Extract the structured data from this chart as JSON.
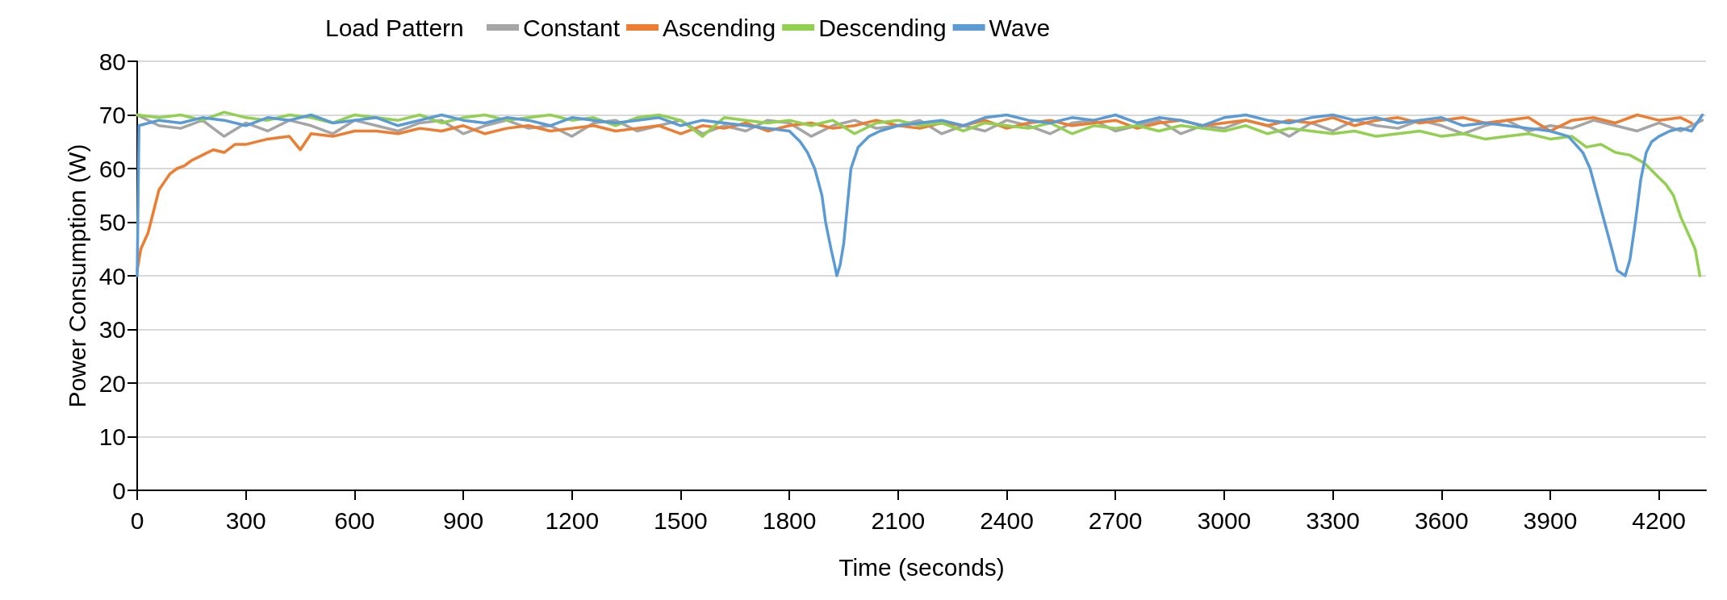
{
  "chart_data": {
    "type": "line",
    "xlabel": "Time (seconds)",
    "ylabel": "Power Consumption (W)",
    "legend_title": "Load Pattern",
    "xlim": [
      0,
      4330
    ],
    "xticks": [
      0,
      300,
      600,
      900,
      1200,
      1500,
      1800,
      2100,
      2400,
      2700,
      3000,
      3300,
      3600,
      3900,
      4200
    ],
    "ylim": [
      0,
      80
    ],
    "yticks": [
      0,
      10,
      20,
      30,
      40,
      50,
      60,
      70,
      80
    ],
    "grid": "y",
    "legend": "top",
    "marker": "none",
    "line_style": "solid",
    "series": [
      {
        "name": "Constant",
        "color": "#a5a5a5",
        "x": [
          0,
          60,
          120,
          180,
          240,
          300,
          360,
          420,
          480,
          540,
          600,
          660,
          720,
          780,
          840,
          900,
          960,
          1020,
          1080,
          1140,
          1200,
          1260,
          1320,
          1380,
          1440,
          1500,
          1560,
          1620,
          1680,
          1740,
          1800,
          1860,
          1920,
          1980,
          2040,
          2100,
          2160,
          2220,
          2280,
          2340,
          2400,
          2460,
          2520,
          2580,
          2640,
          2700,
          2760,
          2820,
          2880,
          2940,
          3000,
          3060,
          3120,
          3180,
          3240,
          3300,
          3360,
          3420,
          3480,
          3540,
          3600,
          3660,
          3720,
          3780,
          3840,
          3900,
          3960,
          4020,
          4080,
          4140,
          4200,
          4260,
          4320
        ],
        "values": [
          70,
          68,
          67.5,
          69,
          66,
          68.5,
          67,
          69,
          68,
          66.5,
          69,
          68,
          67,
          68.5,
          69,
          66.5,
          68,
          69,
          67.5,
          68,
          66,
          68.5,
          69,
          67,
          68,
          69,
          66.5,
          68,
          67,
          69,
          68.5,
          66,
          68,
          69,
          67.5,
          68,
          69,
          66.5,
          68,
          67,
          69,
          68,
          66.5,
          68.5,
          69,
          67,
          68,
          69,
          66.5,
          68,
          67.5,
          69,
          68,
          66,
          68.5,
          67,
          69,
          68,
          67.5,
          69,
          68,
          66.5,
          68,
          69,
          67,
          68,
          67.5,
          69,
          68,
          67,
          68.5,
          67,
          69
        ]
      },
      {
        "name": "Ascending",
        "color": "#ed7d31",
        "x": [
          0,
          10,
          20,
          30,
          45,
          60,
          75,
          90,
          110,
          130,
          150,
          180,
          210,
          240,
          270,
          300,
          360,
          420,
          450,
          480,
          540,
          600,
          660,
          720,
          780,
          840,
          900,
          960,
          1020,
          1080,
          1140,
          1200,
          1260,
          1320,
          1380,
          1440,
          1500,
          1560,
          1620,
          1680,
          1740,
          1800,
          1860,
          1920,
          1980,
          2040,
          2100,
          2160,
          2220,
          2280,
          2340,
          2400,
          2460,
          2520,
          2580,
          2640,
          2700,
          2760,
          2820,
          2880,
          2940,
          3000,
          3060,
          3120,
          3180,
          3240,
          3300,
          3360,
          3420,
          3480,
          3540,
          3600,
          3660,
          3720,
          3780,
          3840,
          3900,
          3960,
          4020,
          4080,
          4140,
          4200,
          4260,
          4290
        ],
        "values": [
          41,
          45,
          46.5,
          48,
          52,
          56,
          57.5,
          59,
          60,
          60.5,
          61.5,
          62.5,
          63.5,
          63,
          64.5,
          64.5,
          65.5,
          66,
          63.5,
          66.5,
          66,
          67,
          67,
          66.5,
          67.5,
          67,
          68,
          66.5,
          67.5,
          68,
          67,
          67.5,
          68,
          67,
          67.5,
          68,
          66.5,
          68,
          67.5,
          68.5,
          67,
          68,
          68.5,
          67.5,
          68,
          69,
          68,
          67.5,
          68.5,
          68,
          69,
          67.5,
          68.5,
          69,
          68,
          68.5,
          69,
          67.5,
          68.5,
          69,
          68,
          68.5,
          69,
          68,
          69,
          68.5,
          69.5,
          68,
          69,
          69.5,
          68.5,
          69,
          69.5,
          68.5,
          69,
          69.5,
          67,
          69,
          69.5,
          68.5,
          70,
          69,
          69.5,
          68.5
        ]
      },
      {
        "name": "Descending",
        "color": "#92d050",
        "x": [
          0,
          60,
          120,
          180,
          240,
          300,
          360,
          420,
          480,
          540,
          600,
          660,
          720,
          780,
          840,
          900,
          960,
          1020,
          1080,
          1140,
          1200,
          1260,
          1320,
          1380,
          1440,
          1500,
          1560,
          1620,
          1680,
          1740,
          1800,
          1860,
          1920,
          1980,
          2040,
          2100,
          2160,
          2220,
          2280,
          2340,
          2400,
          2460,
          2520,
          2580,
          2640,
          2700,
          2760,
          2820,
          2880,
          2940,
          3000,
          3060,
          3120,
          3180,
          3240,
          3300,
          3360,
          3420,
          3480,
          3540,
          3600,
          3660,
          3720,
          3780,
          3840,
          3900,
          3960,
          4000,
          4040,
          4080,
          4120,
          4160,
          4190,
          4220,
          4240,
          4260,
          4280,
          4300,
          4313
        ],
        "values": [
          70,
          69.5,
          70,
          69,
          70.5,
          69.5,
          69,
          70,
          69.5,
          68.5,
          70,
          69.5,
          69,
          70,
          68.5,
          69.5,
          70,
          69,
          69.5,
          70,
          69,
          69.5,
          68,
          69.5,
          70,
          69,
          66,
          69.5,
          69,
          68.5,
          69,
          68,
          69,
          66.5,
          68.5,
          69,
          68,
          68.5,
          67,
          68.5,
          68,
          67.5,
          68.5,
          66.5,
          68,
          67.5,
          68,
          67,
          68,
          67.5,
          67,
          68,
          66.5,
          67.5,
          67,
          66.5,
          67,
          66,
          66.5,
          67,
          66,
          66.5,
          65.5,
          66,
          66.5,
          65.5,
          66,
          64,
          64.5,
          63,
          62.5,
          61,
          59,
          57,
          55,
          51,
          48,
          45,
          40
        ]
      },
      {
        "name": "Wave",
        "color": "#5b9bd5",
        "x": [
          0,
          5,
          60,
          120,
          180,
          240,
          300,
          360,
          420,
          480,
          540,
          600,
          660,
          720,
          780,
          840,
          900,
          960,
          1020,
          1080,
          1140,
          1200,
          1260,
          1320,
          1380,
          1440,
          1500,
          1560,
          1620,
          1680,
          1740,
          1800,
          1830,
          1850,
          1870,
          1890,
          1900,
          1915,
          1925,
          1931,
          1940,
          1950,
          1960,
          1970,
          1990,
          2020,
          2050,
          2100,
          2160,
          2220,
          2280,
          2340,
          2400,
          2460,
          2520,
          2580,
          2640,
          2700,
          2760,
          2820,
          2880,
          2940,
          3000,
          3060,
          3120,
          3180,
          3240,
          3300,
          3360,
          3420,
          3480,
          3540,
          3600,
          3660,
          3720,
          3780,
          3840,
          3900,
          3950,
          3990,
          4010,
          4030,
          4050,
          4070,
          4085,
          4107,
          4120,
          4135,
          4150,
          4165,
          4180,
          4200,
          4230,
          4260,
          4290,
          4320
        ],
        "values": [
          40,
          68,
          69,
          68.5,
          69.5,
          69,
          68,
          69.5,
          69,
          70,
          68.5,
          69,
          69.5,
          68,
          69,
          70,
          69,
          68.5,
          69.5,
          69,
          68,
          69.5,
          69,
          68.5,
          69,
          69.5,
          68,
          69,
          68.5,
          68,
          67.5,
          67,
          65,
          63,
          60,
          55,
          50,
          45,
          42,
          40,
          42,
          46,
          53,
          60,
          64,
          66,
          67,
          68,
          68.5,
          69,
          68,
          69.5,
          70,
          69,
          68.5,
          69.5,
          69,
          70,
          68.5,
          69.5,
          69,
          68,
          69.5,
          70,
          69,
          68.5,
          69.5,
          70,
          69,
          69.5,
          68.5,
          69,
          69.5,
          68,
          68.5,
          68,
          67.5,
          67,
          66,
          63,
          60,
          55,
          50,
          45,
          41,
          40,
          43,
          50,
          58,
          63,
          65,
          66,
          67,
          67.5,
          67,
          70
        ]
      }
    ]
  }
}
